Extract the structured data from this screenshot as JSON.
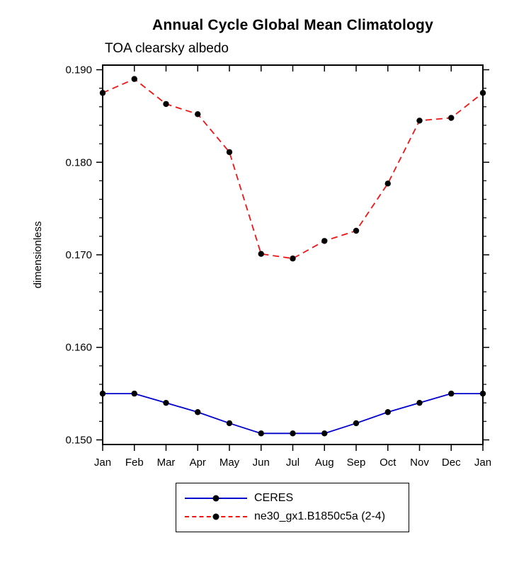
{
  "title": "Annual Cycle Global Mean Climatology",
  "subtitle": "TOA clearsky albedo",
  "chart_data": {
    "type": "line",
    "title": "Annual Cycle Global Mean Climatology",
    "subtitle": "TOA clearsky albedo",
    "xlabel": "",
    "ylabel": "dimensionless",
    "x_tick_labels": [
      "Jan",
      "Feb",
      "Mar",
      "Apr",
      "May",
      "Jun",
      "Jul",
      "Aug",
      "Sep",
      "Oct",
      "Nov",
      "Dec",
      "Jan"
    ],
    "ylim": [
      0.1495,
      0.1905
    ],
    "yticks": [
      0.15,
      0.16,
      0.17,
      0.18,
      0.19
    ],
    "y_minor_step": 0.002,
    "grid": false,
    "legend_position": "bottom-center",
    "marker": "filled-circle",
    "marker_color": "#000000",
    "series": [
      {
        "name": "CERES",
        "color": "#0000cd",
        "dash": "solid",
        "values": [
          0.155,
          0.155,
          0.154,
          0.153,
          0.1518,
          0.1507,
          0.1507,
          0.1507,
          0.1518,
          0.153,
          0.154,
          0.155,
          0.155
        ]
      },
      {
        "name": "ne30_gx1.B1850c5a (2-4)",
        "color": "#f01414",
        "dash": "dashed",
        "values": [
          0.1875,
          0.189,
          0.1863,
          0.1852,
          0.1811,
          0.1701,
          0.1696,
          0.1715,
          0.1726,
          0.1777,
          0.1845,
          0.1848,
          0.1875
        ]
      }
    ]
  }
}
